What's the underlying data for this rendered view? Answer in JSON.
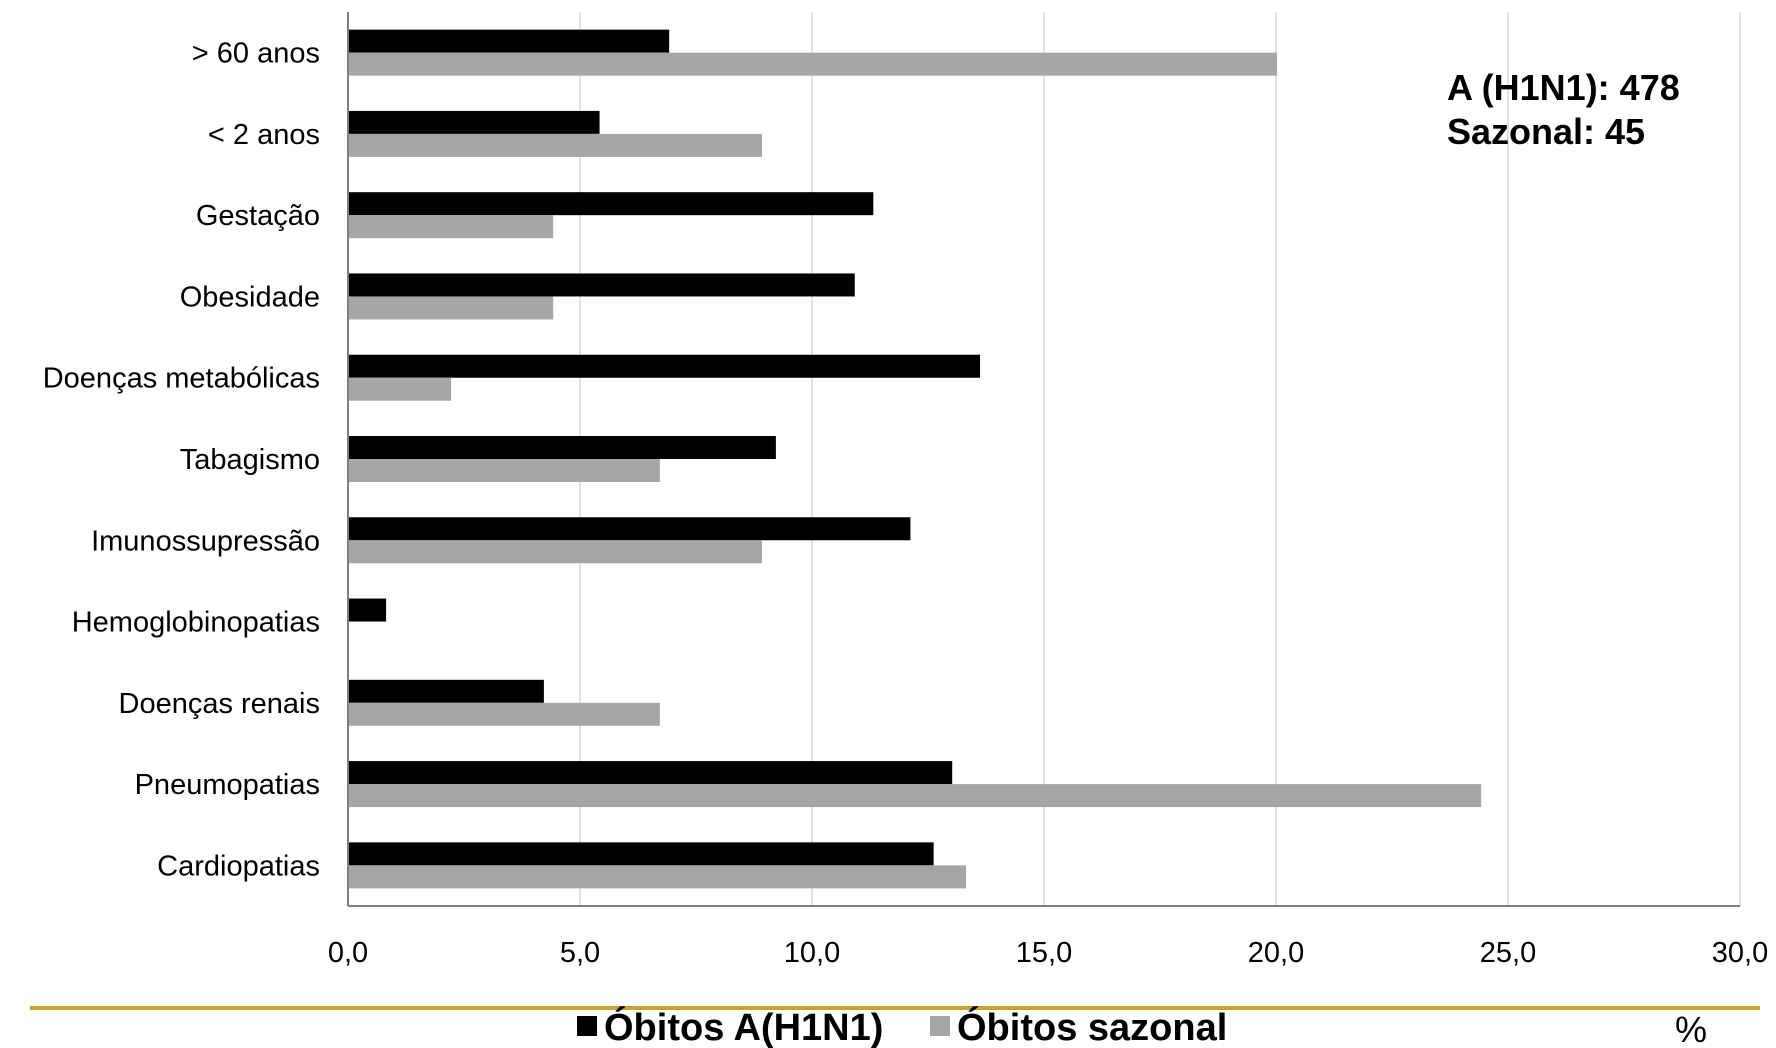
{
  "chart_data": {
    "type": "bar",
    "orientation": "horizontal",
    "categories": [
      "> 60 anos",
      "< 2 anos",
      "Gestação",
      "Obesidade",
      "Doenças metabólicas",
      "Tabagismo",
      "Imunossupressão",
      "Hemoglobinopatias",
      "Doenças renais",
      "Pneumopatias",
      "Cardiopatias"
    ],
    "series": [
      {
        "name": "Óbitos A(H1N1)",
        "color": "#000000",
        "values": [
          6.9,
          5.4,
          11.3,
          10.9,
          13.6,
          9.2,
          12.1,
          0.8,
          4.2,
          13.0,
          12.6
        ]
      },
      {
        "name": "Óbitos sazonal",
        "color": "#a6a6a6",
        "values": [
          20.0,
          8.9,
          4.4,
          4.4,
          2.2,
          6.7,
          8.9,
          0.0,
          6.7,
          24.4,
          13.3
        ]
      }
    ],
    "xlim": [
      0,
      30
    ],
    "xticks": [
      "0,0",
      "5,0",
      "10,0",
      "15,0",
      "20,0",
      "25,0",
      "30,0"
    ],
    "xtick_values": [
      0,
      5,
      10,
      15,
      20,
      25,
      30
    ],
    "unit": "%",
    "grid": "vertical",
    "legend_position": "bottom",
    "annotation": [
      "A (H1N1): 478",
      "Sazonal:  45"
    ]
  },
  "colors": {
    "divider": "#c9a227",
    "grid": "#d9d9d9",
    "axis": "#7f7f7f"
  }
}
